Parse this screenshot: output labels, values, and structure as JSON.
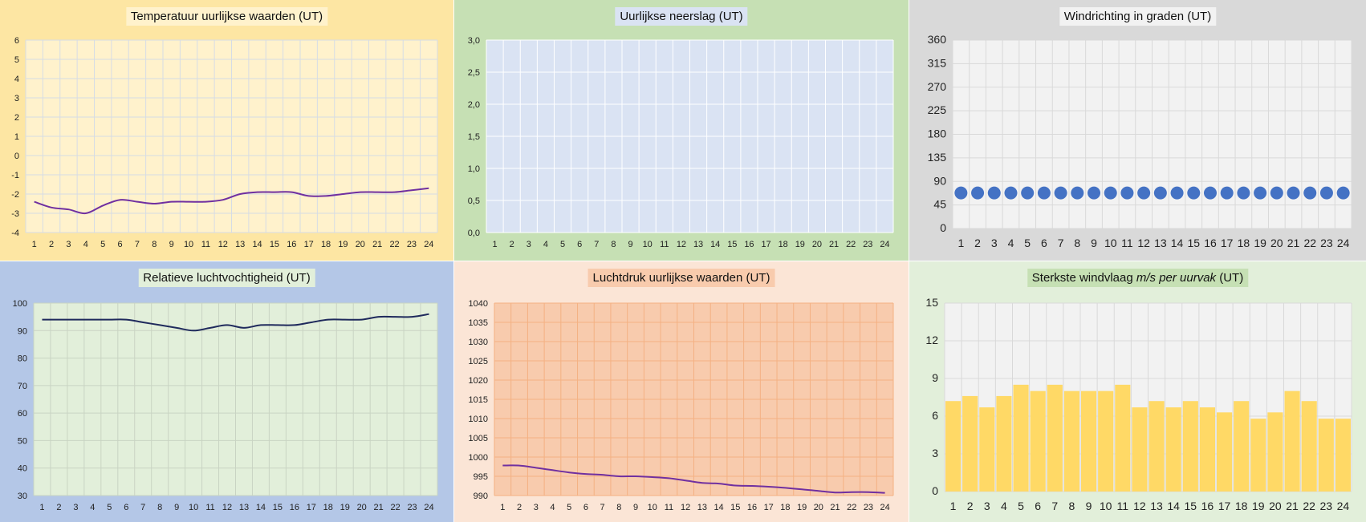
{
  "chart_data": [
    {
      "id": "temp",
      "type": "line",
      "title": "Temperatuur uurlijkse waarden (UT)",
      "categories": [
        "1",
        "2",
        "3",
        "4",
        "5",
        "6",
        "7",
        "8",
        "9",
        "10",
        "11",
        "12",
        "13",
        "14",
        "15",
        "16",
        "17",
        "18",
        "19",
        "20",
        "21",
        "22",
        "23",
        "24"
      ],
      "series": [
        {
          "values": [
            -2.4,
            -2.7,
            -2.8,
            -3.0,
            -2.6,
            -2.3,
            -2.4,
            -2.5,
            -2.4,
            -2.4,
            -2.4,
            -2.3,
            -2.0,
            -1.9,
            -1.9,
            -1.9,
            -2.1,
            -2.1,
            -2.0,
            -1.9,
            -1.9,
            -1.9,
            -1.8,
            -1.7
          ]
        }
      ],
      "ylim": [
        -4,
        6
      ],
      "yticks": [
        "6",
        "5",
        "4",
        "3",
        "2",
        "1",
        "0",
        "-1",
        "-2",
        "-3",
        "-4"
      ],
      "colors": {
        "panel": "#fde6a3",
        "plot": "#fff2cc",
        "grid": "#d6dce5",
        "line": "#7030a0",
        "title_bg": "#fff2cc"
      },
      "grid": true
    },
    {
      "id": "neerslag",
      "type": "bar",
      "title": "Uurlijkse neerslag (UT)",
      "categories": [
        "1",
        "2",
        "3",
        "4",
        "5",
        "6",
        "7",
        "8",
        "9",
        "10",
        "11",
        "12",
        "13",
        "14",
        "15",
        "16",
        "17",
        "18",
        "19",
        "20",
        "21",
        "22",
        "23",
        "24"
      ],
      "values": [
        0,
        0,
        0,
        0,
        0,
        0,
        0,
        0,
        0,
        0,
        0,
        0,
        0,
        0,
        0,
        0,
        0,
        0,
        0,
        0,
        0,
        0,
        0,
        0
      ],
      "ylim": [
        0,
        3
      ],
      "yticks": [
        "3,0",
        "2,5",
        "2,0",
        "1,5",
        "1,0",
        "0,5",
        "0,0"
      ],
      "colors": {
        "panel": "#c6e0b4",
        "plot": "#dae3f3",
        "grid": "#ffffff",
        "title_bg": "#dae3f3"
      },
      "grid": true
    },
    {
      "id": "windrichting",
      "type": "scatter",
      "title": "Windrichting in graden (UT)",
      "categories": [
        "1",
        "2",
        "3",
        "4",
        "5",
        "6",
        "7",
        "8",
        "9",
        "10",
        "11",
        "12",
        "13",
        "14",
        "15",
        "16",
        "17",
        "18",
        "19",
        "20",
        "21",
        "22",
        "23",
        "24"
      ],
      "values": [
        68,
        68,
        68,
        68,
        68,
        68,
        68,
        68,
        68,
        68,
        68,
        68,
        68,
        68,
        68,
        68,
        68,
        68,
        68,
        68,
        68,
        68,
        68,
        68
      ],
      "ylim": [
        0,
        360
      ],
      "yticks": [
        "360",
        "315",
        "270",
        "225",
        "180",
        "135",
        "90",
        "45",
        "0"
      ],
      "colors": {
        "panel": "#d9d9d9",
        "plot": "#f2f2f2",
        "grid": "#d9d9d9",
        "marker": "#4472c4",
        "title_bg": "#f2f2f2"
      },
      "grid": true
    },
    {
      "id": "vocht",
      "type": "line",
      "title": "Relatieve luchtvochtigheid (UT)",
      "categories": [
        "1",
        "2",
        "3",
        "4",
        "5",
        "6",
        "7",
        "8",
        "9",
        "10",
        "11",
        "12",
        "13",
        "14",
        "15",
        "16",
        "17",
        "18",
        "19",
        "20",
        "21",
        "22",
        "23",
        "24"
      ],
      "series": [
        {
          "values": [
            94,
            94,
            94,
            94,
            94,
            94,
            93,
            92,
            91,
            90,
            91,
            92,
            91,
            92,
            92,
            92,
            93,
            94,
            94,
            94,
            95,
            95,
            95,
            96
          ]
        }
      ],
      "ylim": [
        30,
        100
      ],
      "yticks": [
        "100",
        "90",
        "80",
        "70",
        "60",
        "50",
        "40",
        "30"
      ],
      "colors": {
        "panel": "#b4c7e7",
        "plot": "#e2efda",
        "grid": "#c9d4c3",
        "line": "#1f2a5c",
        "title_bg": "#e2efda"
      },
      "grid": true
    },
    {
      "id": "luchtdruk",
      "type": "line",
      "title": "Luchtdruk uurlijkse waarden (UT)",
      "categories": [
        "1",
        "2",
        "3",
        "4",
        "5",
        "6",
        "7",
        "8",
        "9",
        "10",
        "11",
        "12",
        "13",
        "14",
        "15",
        "16",
        "17",
        "18",
        "19",
        "20",
        "21",
        "22",
        "23",
        "24"
      ],
      "series": [
        {
          "values": [
            997.8,
            997.8,
            997.2,
            996.6,
            996.0,
            995.6,
            995.4,
            995.0,
            995.0,
            994.8,
            994.5,
            993.9,
            993.3,
            993.1,
            992.6,
            992.5,
            992.3,
            992.0,
            991.6,
            991.2,
            990.8,
            990.9,
            990.9,
            990.7
          ]
        }
      ],
      "ylim": [
        990,
        1040
      ],
      "yticks": [
        "1040",
        "1035",
        "1030",
        "1025",
        "1020",
        "1015",
        "1010",
        "1005",
        "1000",
        "995",
        "990"
      ],
      "colors": {
        "panel": "#fbe5d6",
        "plot": "#f8cbad",
        "grid": "#f4b183",
        "line": "#7030a0",
        "title_bg": "#f8cbad"
      },
      "grid": true
    },
    {
      "id": "windvlaag",
      "type": "bar",
      "title_parts": [
        "Sterkste windvlaag ",
        "m/s per uurvak",
        "  (UT)"
      ],
      "categories": [
        "1",
        "2",
        "3",
        "4",
        "5",
        "6",
        "7",
        "8",
        "9",
        "10",
        "11",
        "12",
        "13",
        "14",
        "15",
        "16",
        "17",
        "18",
        "19",
        "20",
        "21",
        "22",
        "23",
        "24"
      ],
      "values": [
        7.2,
        7.6,
        6.7,
        7.6,
        8.5,
        8.0,
        8.5,
        8.0,
        8.0,
        8.0,
        8.5,
        6.7,
        7.2,
        6.7,
        7.2,
        6.7,
        6.3,
        7.2,
        5.8,
        6.3,
        8.0,
        7.2,
        5.8,
        5.8
      ],
      "ylim": [
        0,
        15
      ],
      "yticks": [
        "15",
        "12",
        "9",
        "6",
        "3",
        "0"
      ],
      "colors": {
        "panel": "#e2efda",
        "plot": "#f2f2f2",
        "grid": "#d9d9d9",
        "bar": "#ffd966",
        "title_bg": "#c6e0b4"
      },
      "grid": true
    }
  ]
}
